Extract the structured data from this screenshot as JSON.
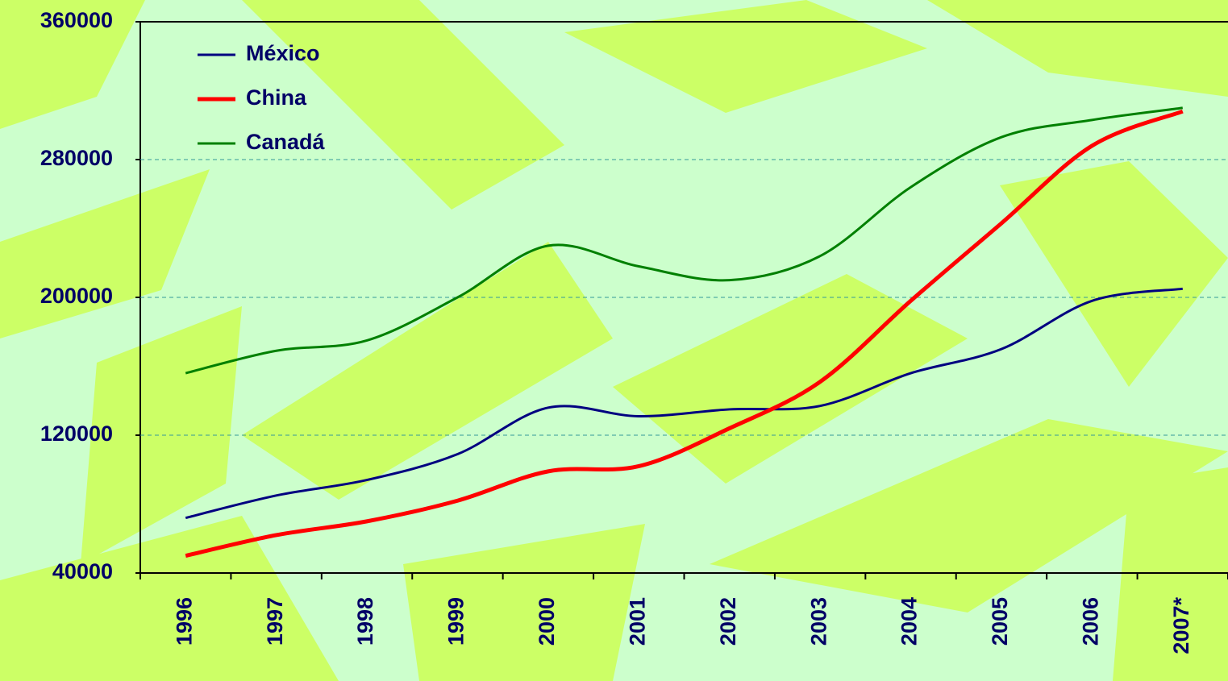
{
  "chart_data": {
    "type": "line",
    "categories": [
      "1996",
      "1997",
      "1998",
      "1999",
      "2000",
      "2001",
      "2002",
      "2003",
      "2004",
      "2005",
      "2006",
      "2007*"
    ],
    "series": [
      {
        "name": "México",
        "color": "#000080",
        "values": [
          72000,
          85000,
          94000,
          109000,
          136000,
          131000,
          135000,
          137000,
          156000,
          170000,
          198000,
          205000
        ]
      },
      {
        "name": "China",
        "color": "#ff0000",
        "values": [
          50000,
          62000,
          70000,
          82000,
          99000,
          102000,
          124000,
          151000,
          198000,
          243000,
          288000,
          308000
        ]
      },
      {
        "name": "Canadá",
        "color": "#008000",
        "values": [
          156000,
          169000,
          175000,
          200000,
          230000,
          218000,
          210000,
          224000,
          264000,
          293000,
          303000,
          310000
        ]
      }
    ],
    "ylim": [
      40000,
      360000
    ],
    "yticks": [
      40000,
      120000,
      200000,
      280000,
      360000
    ],
    "grid": true
  }
}
